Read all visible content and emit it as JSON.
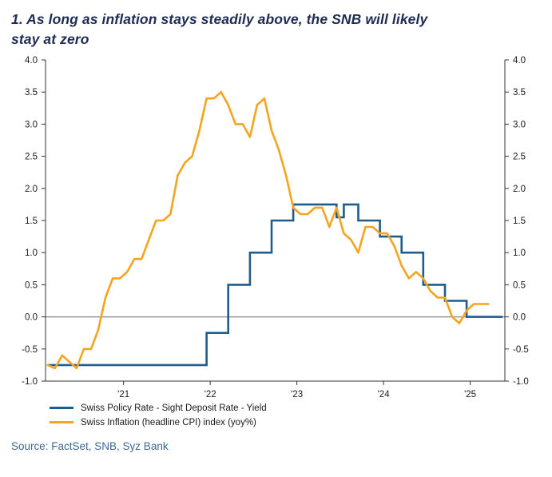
{
  "title": "1. As long as inflation stays steadily above, the SNB will likely stay at zero",
  "source": "Source: FactSet, SNB, Syz Bank",
  "colors": {
    "title": "#1f2c52",
    "source": "#3d6992",
    "axis": "#333333",
    "tick_label": "#1a1a1a",
    "zero_line": "#858585",
    "policy_rate_line": "#1d5c8c",
    "inflation_line": "#f5a41f"
  },
  "legend": [
    {
      "label": "Swiss Policy Rate - Sight Deposit Rate - Yield",
      "color": "#1d5c8c"
    },
    {
      "label": "Swiss Inflation (headline CPI) index (yoy%)",
      "color": "#f5a41f"
    }
  ],
  "chart_data": {
    "type": "line",
    "title": "1. As long as inflation stays steadily above, the SNB will likely stay at zero",
    "xlabel": "",
    "ylabel": "",
    "grid": false,
    "legend_position": "bottom-left",
    "ylim": [
      -1.0,
      4.0
    ],
    "y_step": 0.5,
    "y_tick_labels": [
      "4.0",
      "3.5",
      "3.0",
      "2.5",
      "2.0",
      "1.5",
      "1.0",
      "0.5",
      "0.0",
      "-0.5",
      "-1.0"
    ],
    "xlim": [
      2020.6,
      2025.9
    ],
    "x_ticks": [
      {
        "t": 2021.5,
        "label": "'21"
      },
      {
        "t": 2022.5,
        "label": "'22"
      },
      {
        "t": 2023.5,
        "label": "'23"
      },
      {
        "t": 2024.5,
        "label": "'24"
      },
      {
        "t": 2025.5,
        "label": "'25"
      }
    ],
    "series": [
      {
        "name": "Swiss Policy Rate - Sight Deposit Rate - Yield",
        "type": "step",
        "color": "#1d5c8c",
        "steps": [
          [
            "2020-08",
            -0.75
          ],
          [
            "2022-06",
            -0.25
          ],
          [
            "2022-09",
            0.5
          ],
          [
            "2022-12",
            1.0
          ],
          [
            "2023-03",
            1.5
          ],
          [
            "2023-06",
            1.75
          ],
          [
            "2023-12",
            1.55
          ],
          [
            "2024-01",
            1.75
          ],
          [
            "2024-03",
            1.5
          ],
          [
            "2024-06",
            1.25
          ],
          [
            "2024-09",
            1.0
          ],
          [
            "2024-12",
            0.5
          ],
          [
            "2025-03",
            0.25
          ],
          [
            "2025-06",
            0.0
          ]
        ],
        "end": "2025-11"
      },
      {
        "name": "Swiss Inflation (headline CPI) index (yoy%)",
        "type": "line",
        "color": "#f5a41f",
        "start": "2020-08",
        "interval_months": 1,
        "values": [
          -0.75,
          -0.8,
          -0.6,
          -0.7,
          -0.8,
          -0.5,
          -0.5,
          -0.2,
          0.3,
          0.6,
          0.6,
          0.7,
          0.9,
          0.9,
          1.2,
          1.5,
          1.5,
          1.6,
          2.2,
          2.4,
          2.5,
          2.9,
          3.4,
          3.4,
          3.5,
          3.3,
          3.0,
          3.0,
          2.8,
          3.3,
          3.4,
          2.9,
          2.6,
          2.2,
          1.7,
          1.6,
          1.6,
          1.7,
          1.7,
          1.4,
          1.7,
          1.3,
          1.2,
          1.0,
          1.4,
          1.4,
          1.3,
          1.3,
          1.1,
          0.8,
          0.6,
          0.7,
          0.6,
          0.4,
          0.3,
          0.3,
          0.0,
          -0.1,
          0.1,
          0.2,
          0.2,
          0.2
        ]
      }
    ]
  }
}
